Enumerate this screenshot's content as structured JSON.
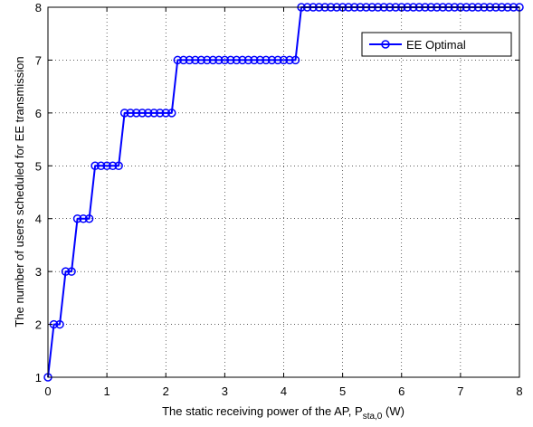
{
  "chart_data": {
    "type": "line",
    "title": "",
    "xlabel": "The static receiving power of the AP, P",
    "xlabel_sub": "sta,0",
    "xlabel_unit": " (W)",
    "ylabel": "The number of users scheduled for EE transmission",
    "xlim": [
      0,
      8
    ],
    "ylim": [
      1,
      8
    ],
    "xticks": [
      0,
      1,
      2,
      3,
      4,
      5,
      6,
      7,
      8
    ],
    "yticks": [
      1,
      2,
      3,
      4,
      5,
      6,
      7,
      8
    ],
    "grid": true,
    "legend_position": "top-right",
    "series": [
      {
        "name": "EE Optimal",
        "color": "#0000ff",
        "marker": "circle",
        "x": [
          0.0,
          0.1,
          0.2,
          0.3,
          0.4,
          0.5,
          0.6,
          0.7,
          0.8,
          0.9,
          1.0,
          1.1,
          1.2,
          1.3,
          1.4,
          1.5,
          1.6,
          1.7,
          1.8,
          1.9,
          2.0,
          2.1,
          2.2,
          2.3,
          2.4,
          2.5,
          2.6,
          2.7,
          2.8,
          2.9,
          3.0,
          3.1,
          3.2,
          3.3,
          3.4,
          3.5,
          3.6,
          3.7,
          3.8,
          3.9,
          4.0,
          4.1,
          4.2,
          4.3,
          4.4,
          4.5,
          4.6,
          4.7,
          4.8,
          4.9,
          5.0,
          5.1,
          5.2,
          5.3,
          5.4,
          5.5,
          5.6,
          5.7,
          5.8,
          5.9,
          6.0,
          6.1,
          6.2,
          6.3,
          6.4,
          6.5,
          6.6,
          6.7,
          6.8,
          6.9,
          7.0,
          7.1,
          7.2,
          7.3,
          7.4,
          7.5,
          7.6,
          7.7,
          7.8,
          7.9,
          8.0
        ],
        "y": [
          1,
          2,
          2,
          3,
          3,
          4,
          4,
          4,
          5,
          5,
          5,
          5,
          5,
          6,
          6,
          6,
          6,
          6,
          6,
          6,
          6,
          6,
          7,
          7,
          7,
          7,
          7,
          7,
          7,
          7,
          7,
          7,
          7,
          7,
          7,
          7,
          7,
          7,
          7,
          7,
          7,
          7,
          7,
          8,
          8,
          8,
          8,
          8,
          8,
          8,
          8,
          8,
          8,
          8,
          8,
          8,
          8,
          8,
          8,
          8,
          8,
          8,
          8,
          8,
          8,
          8,
          8,
          8,
          8,
          8,
          8,
          8,
          8,
          8,
          8,
          8,
          8,
          8,
          8,
          8,
          8
        ]
      }
    ]
  }
}
